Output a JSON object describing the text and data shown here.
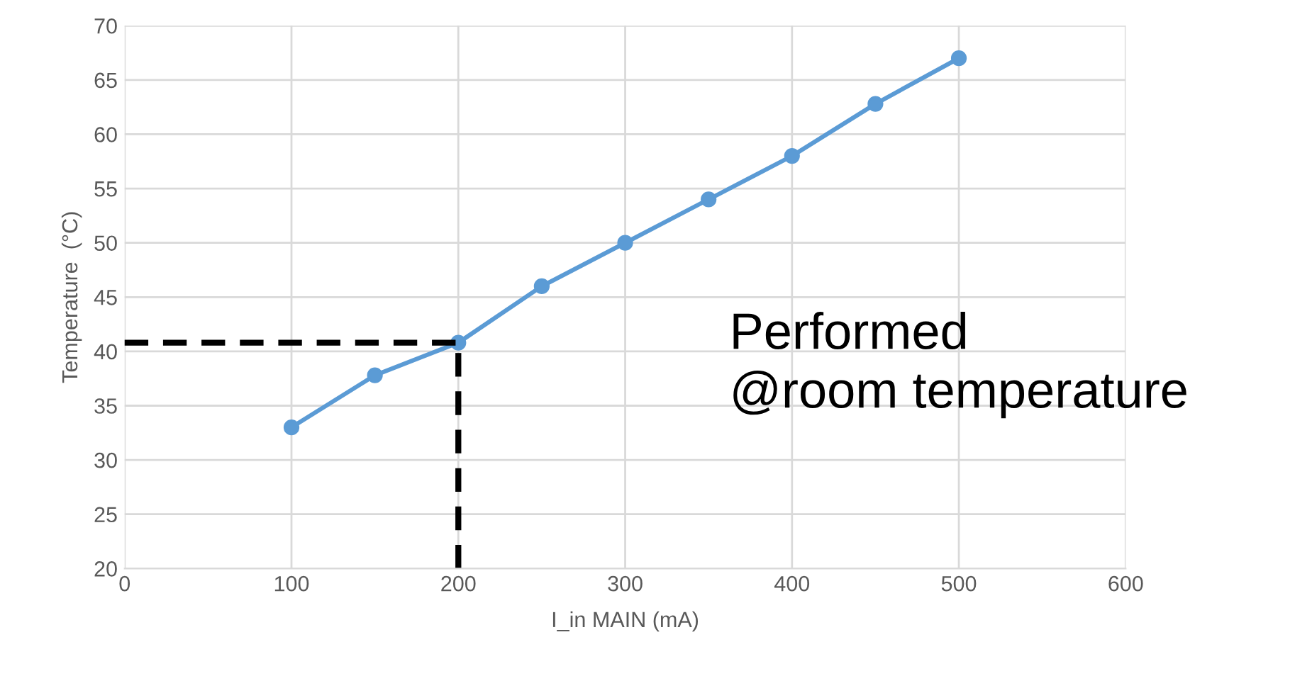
{
  "chart_data": {
    "type": "line",
    "xlabel": "I_in MAIN (mA)",
    "ylabel": "Temperature  (°C)",
    "x": [
      100,
      150,
      200,
      250,
      300,
      350,
      400,
      450,
      500
    ],
    "series": [
      {
        "color": "#5b9bd5",
        "values": [
          33,
          37.8,
          40.8,
          46,
          50,
          54,
          58,
          62.8,
          67
        ]
      }
    ],
    "xlim": [
      0,
      600
    ],
    "xticks": [
      0,
      100,
      200,
      300,
      400,
      500,
      600
    ],
    "ylim": [
      20,
      70
    ],
    "yticks": [
      20,
      25,
      30,
      35,
      40,
      45,
      50,
      55,
      60,
      65,
      70
    ],
    "grid": true,
    "marker": "circle",
    "line_style": "solid",
    "ref_lines": [
      {
        "axis": "y",
        "value": 40.8,
        "color": "#000000",
        "line_style": "dashed"
      },
      {
        "axis": "x",
        "value": 200,
        "color": "#000000",
        "line_style": "dashed"
      }
    ],
    "annotations": [
      "Performed\n@room temperature"
    ]
  }
}
